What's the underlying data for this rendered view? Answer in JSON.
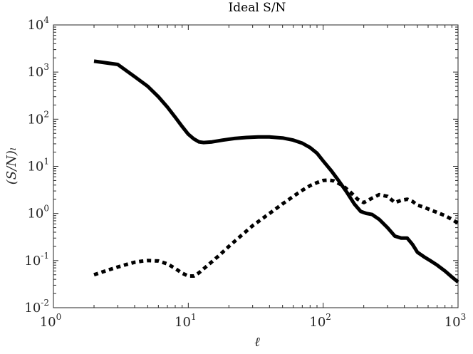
{
  "chart_data": {
    "type": "line",
    "title": "Ideal S/N",
    "xlabel": "ℓ",
    "ylabel": "(S/N)ₗ",
    "xscale": "log",
    "yscale": "log",
    "xlim": [
      1,
      1000
    ],
    "ylim": [
      0.01,
      10000
    ],
    "grid": false,
    "x_ticks": [
      {
        "mant": "10",
        "exp": "0",
        "v": 1
      },
      {
        "mant": "10",
        "exp": "1",
        "v": 10
      },
      {
        "mant": "10",
        "exp": "2",
        "v": 100
      },
      {
        "mant": "10",
        "exp": "3",
        "v": 1000
      }
    ],
    "y_ticks": [
      {
        "mant": "10",
        "exp": "-2",
        "v": 0.01
      },
      {
        "mant": "10",
        "exp": "-1",
        "v": 0.1
      },
      {
        "mant": "10",
        "exp": "0",
        "v": 1
      },
      {
        "mant": "10",
        "exp": "1",
        "v": 10
      },
      {
        "mant": "10",
        "exp": "2",
        "v": 100
      },
      {
        "mant": "10",
        "exp": "3",
        "v": 1000
      },
      {
        "mant": "10",
        "exp": "4",
        "v": 10000
      }
    ],
    "series": [
      {
        "style": "solid",
        "color": "#000000",
        "x": [
          2,
          3,
          4,
          5,
          6,
          7,
          8,
          9,
          10,
          11,
          12,
          13,
          15,
          18,
          22,
          27,
          33,
          40,
          50,
          60,
          70,
          80,
          90,
          100,
          115,
          130,
          150,
          170,
          190,
          210,
          230,
          260,
          300,
          340,
          380,
          420,
          460,
          500,
          560,
          620,
          700,
          800,
          900,
          1000
        ],
        "y": [
          1700,
          1450,
          800,
          500,
          300,
          180,
          110,
          70,
          48,
          38,
          33,
          32,
          33,
          36,
          39,
          41,
          42,
          42,
          40,
          36,
          31,
          25,
          19,
          13,
          8,
          5,
          2.8,
          1.6,
          1.1,
          1.0,
          0.95,
          0.75,
          0.5,
          0.33,
          0.3,
          0.3,
          0.22,
          0.15,
          0.12,
          0.1,
          0.08,
          0.06,
          0.045,
          0.035
        ]
      },
      {
        "style": "dotted",
        "color": "#000000",
        "x": [
          2,
          2.5,
          3,
          3.5,
          4,
          4.5,
          5,
          6,
          7,
          8,
          9,
          10,
          11,
          12,
          14,
          17,
          20,
          25,
          30,
          40,
          50,
          60,
          70,
          80,
          90,
          100,
          110,
          120,
          140,
          160,
          180,
          200,
          230,
          260,
          300,
          340,
          380,
          420,
          460,
          500,
          560,
          620,
          700,
          800,
          900,
          1000
        ],
        "y": [
          0.05,
          0.062,
          0.073,
          0.083,
          0.092,
          0.097,
          0.1,
          0.098,
          0.085,
          0.068,
          0.054,
          0.047,
          0.047,
          0.055,
          0.08,
          0.13,
          0.2,
          0.35,
          0.55,
          1.0,
          1.6,
          2.3,
          3.1,
          3.9,
          4.5,
          5.0,
          5.1,
          4.9,
          3.9,
          2.8,
          2.0,
          1.7,
          2.1,
          2.5,
          2.3,
          1.7,
          1.9,
          2.0,
          1.8,
          1.5,
          1.35,
          1.2,
          1.05,
          0.9,
          0.75,
          0.62
        ]
      }
    ]
  }
}
